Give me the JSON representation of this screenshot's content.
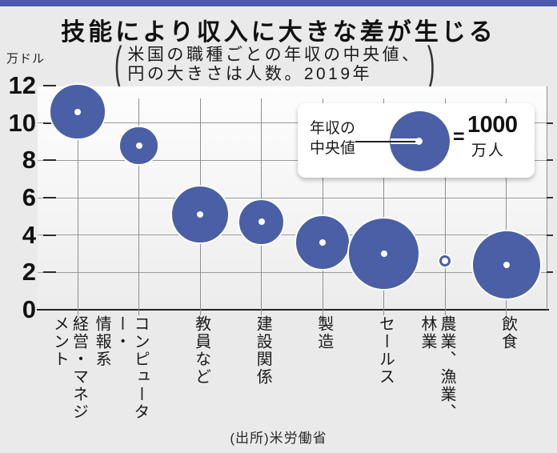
{
  "page": {
    "title": "技能により収入に大きな差が生じる",
    "subtitle_line1": "米国の職種ごとの年収の中央値、",
    "subtitle_line2": "円の大きさは人数。2019年",
    "paren_open": "(",
    "paren_close": ")",
    "source": "(出所)米労働省",
    "top_bar_color": "#4b5aa9"
  },
  "legend": {
    "label_line1": "年収の",
    "label_line2": "中央値",
    "equals": "=",
    "value": "1000",
    "value_unit": "万人"
  },
  "chart_data": {
    "type": "scatter",
    "subtype": "bubble",
    "title": "技能により収入に大きな差が生じる",
    "subtitle": "米国の職種ごとの年収の中央値、円の大きさは人数。2019年",
    "categories": [
      "経営・マネジメント",
      "コンピューター・情報系",
      "教員など",
      "建設関係",
      "製造",
      "セールス",
      "農業、漁業、林業",
      "飲食"
    ],
    "categories_display": [
      "経営・マネジ\nメント",
      "コンピューター・\n情報系",
      "教員など",
      "建設関係",
      "製造",
      "セールス",
      "農業、漁業、\n林業",
      "飲食"
    ],
    "values_median_income_10k_usd": [
      10.6,
      8.8,
      5.1,
      4.7,
      3.6,
      3.0,
      2.6,
      2.4
    ],
    "bubble_sizes_10k_people": [
      800,
      380,
      870,
      540,
      770,
      1350,
      35,
      1280
    ],
    "legend_reference_10k_people": 1000,
    "ylabel": "万ドル",
    "ylim": [
      0,
      12
    ],
    "yticks": [
      0,
      2,
      4,
      6,
      8,
      10,
      12
    ],
    "grid": true,
    "bubble_color": "#4a5fa5",
    "source": "(出所)米労働省"
  }
}
